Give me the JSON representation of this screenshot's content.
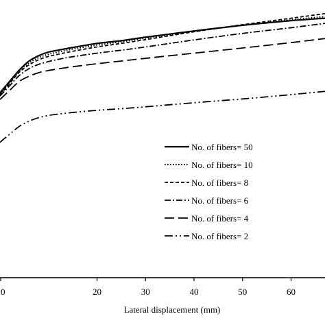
{
  "chart_data": {
    "type": "line",
    "title": "",
    "xlabel": "Lateral displacement (mm)",
    "ylabel": "",
    "xlim": [
      0,
      67
    ],
    "ylim": [
      0,
      100
    ],
    "xticks": [
      "20",
      "30",
      "40",
      "50",
      "60"
    ],
    "xtick_values": [
      20,
      30,
      40,
      50,
      60
    ],
    "partial_first_tick": "0",
    "grid": false,
    "legend_position": "center-right",
    "series": [
      {
        "name": "No. of fibers= 50",
        "style": "solid",
        "x": [
          0,
          2,
          4,
          6,
          8,
          10,
          12,
          15,
          20,
          25,
          30,
          40,
          50,
          60,
          67
        ],
        "y": [
          68.3,
          72.5,
          76.7,
          80.0,
          82.0,
          83.3,
          84.0,
          85.0,
          86.5,
          87.5,
          88.8,
          91.1,
          93.2,
          94.9,
          95.8
        ]
      },
      {
        "name": "No. of fibers= 10",
        "style": "dotted",
        "x": [
          0,
          2,
          4,
          6,
          8,
          10,
          12,
          15,
          20,
          25,
          30,
          40,
          50,
          60,
          67
        ],
        "y": [
          67.9,
          72.1,
          76.3,
          79.3,
          81.3,
          82.5,
          83.3,
          84.4,
          85.9,
          87.1,
          88.5,
          90.9,
          93.2,
          95.2,
          96.4
        ]
      },
      {
        "name": "No. of fibers= 8",
        "style": "dashed",
        "x": [
          0,
          2,
          4,
          6,
          8,
          10,
          12,
          15,
          20,
          25,
          30,
          40,
          50,
          60,
          67
        ],
        "y": [
          67.5,
          71.7,
          75.9,
          78.6,
          80.5,
          81.7,
          82.5,
          83.6,
          85.2,
          86.5,
          87.9,
          90.8,
          93.4,
          95.8,
          97.5
        ]
      },
      {
        "name": "No. of fibers= 6",
        "style": "dash-dot",
        "x": [
          0,
          2,
          4,
          6,
          8,
          10,
          12,
          15,
          20,
          25,
          30,
          40,
          50,
          60,
          67
        ],
        "y": [
          67.1,
          70.9,
          74.7,
          77.2,
          78.8,
          79.8,
          80.6,
          81.6,
          82.9,
          84.0,
          85.2,
          87.8,
          90.2,
          92.3,
          93.9
        ]
      },
      {
        "name": "No. of fibers= 4",
        "style": "long-dash",
        "x": [
          0,
          2,
          4,
          6,
          8,
          10,
          12,
          15,
          20,
          25,
          30,
          40,
          50,
          60,
          67
        ],
        "y": [
          65.8,
          69.2,
          72.5,
          74.4,
          75.7,
          76.5,
          77.1,
          77.9,
          79.0,
          80.0,
          81.0,
          82.9,
          84.8,
          86.8,
          88.3
        ]
      },
      {
        "name": "No. of fibers= 2",
        "style": "dash-dot-dot",
        "x": [
          0,
          2,
          4,
          6,
          8,
          10,
          12,
          15,
          20,
          25,
          30,
          40,
          50,
          60,
          67
        ],
        "y": [
          50.0,
          53.0,
          55.9,
          57.8,
          59.1,
          59.9,
          60.4,
          61.0,
          61.8,
          62.4,
          63.1,
          64.6,
          66.0,
          67.6,
          68.8
        ]
      }
    ]
  }
}
